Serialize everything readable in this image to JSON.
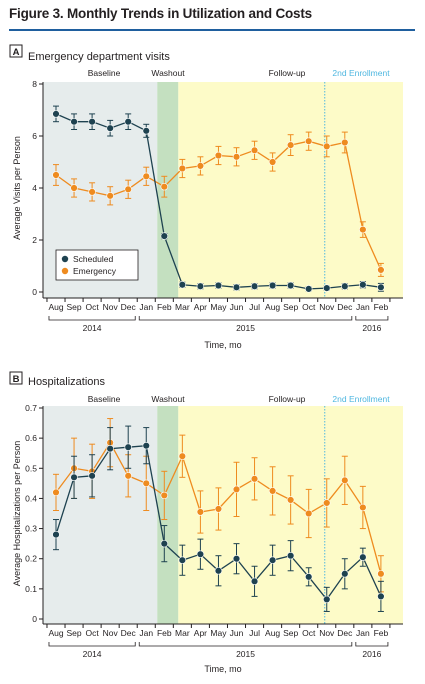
{
  "figure": {
    "title": "Figure 3. Monthly Trends in Utilization and Costs"
  },
  "colors": {
    "scheduled": "#1e4250",
    "emergency": "#ee8b1f",
    "baseline_bg": "#e6ecec",
    "washout_bg": "#c4e0c0",
    "followup_bg": "#fdfbc8",
    "enrollment_line": "#4fb7e0",
    "title_rule": "#1f5f9e"
  },
  "chart_data": [
    {
      "type": "line",
      "panel_letter": "A",
      "title": "Emergency department visits",
      "ylabel": "Average Visits per Person",
      "xlabel": "Time, mo",
      "ylim": [
        0,
        8
      ],
      "yticks": [
        0,
        2,
        4,
        6,
        8
      ],
      "ytick_labels": [
        "0",
        "2",
        "4",
        "6",
        "8"
      ],
      "grid": false,
      "legend_position": "bottom-left",
      "categories": [
        "Aug",
        "Sep",
        "Oct",
        "Nov",
        "Dec",
        "Jan",
        "Feb",
        "Mar",
        "Apr",
        "May",
        "Jun",
        "Jul",
        "Aug",
        "Sep",
        "Oct",
        "Nov",
        "Dec",
        "Jan",
        "Feb"
      ],
      "years": [
        {
          "label": "2014",
          "start": 0,
          "end": 4
        },
        {
          "label": "2015",
          "start": 5,
          "end": 16
        },
        {
          "label": "2016",
          "start": 17,
          "end": 18
        }
      ],
      "period_labels": {
        "baseline": "Baseline",
        "washout": "Washout",
        "followup": "Follow-up",
        "enrollment": "2nd Enrollment"
      },
      "series": [
        {
          "name": "Scheduled",
          "key": "scheduled",
          "values": [
            6.85,
            6.55,
            6.55,
            6.3,
            6.55,
            6.2,
            2.15,
            0.28,
            0.22,
            0.25,
            0.18,
            0.22,
            0.25,
            0.25,
            0.12,
            0.15,
            0.22,
            0.28,
            0.18
          ],
          "errors": [
            0.3,
            0.3,
            0.3,
            0.3,
            0.3,
            0.25,
            0.1,
            0.1,
            0.1,
            0.1,
            0.1,
            0.1,
            0.1,
            0.1,
            0.08,
            0.08,
            0.1,
            0.12,
            0.15
          ]
        },
        {
          "name": "Emergency",
          "key": "emergency",
          "values": [
            4.5,
            4.0,
            3.85,
            3.7,
            3.95,
            4.45,
            4.05,
            4.75,
            4.85,
            5.25,
            5.2,
            5.45,
            5.0,
            5.65,
            5.8,
            5.6,
            5.75,
            2.4,
            0.85
          ],
          "errors": [
            0.4,
            0.35,
            0.35,
            0.35,
            0.35,
            0.35,
            0.4,
            0.35,
            0.35,
            0.35,
            0.35,
            0.35,
            0.35,
            0.4,
            0.35,
            0.4,
            0.4,
            0.3,
            0.25
          ]
        }
      ]
    },
    {
      "type": "line",
      "panel_letter": "B",
      "title": "Hospitalizations",
      "ylabel": "Average Hospitalizations per Person",
      "xlabel": "Time, mo",
      "ylim": [
        0,
        0.7
      ],
      "yticks": [
        0,
        0.1,
        0.2,
        0.3,
        0.4,
        0.5,
        0.6,
        0.7
      ],
      "ytick_labels": [
        "0",
        "0.1",
        "0.2",
        "0.3",
        "0.4",
        "0.5",
        "0.6",
        "0.7"
      ],
      "grid": false,
      "categories": [
        "Aug",
        "Sep",
        "Oct",
        "Nov",
        "Dec",
        "Jan",
        "Feb",
        "Mar",
        "Apr",
        "May",
        "Jun",
        "Jul",
        "Aug",
        "Sep",
        "Oct",
        "Nov",
        "Dec",
        "Jan",
        "Feb"
      ],
      "years": [
        {
          "label": "2014",
          "start": 0,
          "end": 4
        },
        {
          "label": "2015",
          "start": 5,
          "end": 16
        },
        {
          "label": "2016",
          "start": 17,
          "end": 18
        }
      ],
      "period_labels": {
        "baseline": "Baseline",
        "washout": "Washout",
        "followup": "Follow-up",
        "enrollment": "2nd Enrollment"
      },
      "series": [
        {
          "name": "Scheduled",
          "key": "scheduled",
          "values": [
            0.28,
            0.47,
            0.475,
            0.565,
            0.57,
            0.575,
            0.25,
            0.195,
            0.215,
            0.16,
            0.2,
            0.125,
            0.195,
            0.21,
            0.14,
            0.065,
            0.15,
            0.205,
            0.075
          ],
          "errors": [
            0.05,
            0.07,
            0.07,
            0.07,
            0.07,
            0.06,
            0.06,
            0.05,
            0.05,
            0.05,
            0.05,
            0.05,
            0.05,
            0.05,
            0.03,
            0.04,
            0.05,
            0.03,
            0.05
          ]
        },
        {
          "name": "Emergency",
          "key": "emergency",
          "values": [
            0.42,
            0.5,
            0.49,
            0.585,
            0.475,
            0.45,
            0.41,
            0.54,
            0.355,
            0.365,
            0.43,
            0.465,
            0.425,
            0.395,
            0.35,
            0.385,
            0.46,
            0.37,
            0.15
          ]
        }
      ],
      "emergency_errors": [
        0.06,
        0.1,
        0.09,
        0.08,
        0.07,
        0.09,
        0.08,
        0.07,
        0.07,
        0.07,
        0.09,
        0.07,
        0.08,
        0.08,
        0.08,
        0.08,
        0.08,
        0.07,
        0.06
      ]
    }
  ]
}
